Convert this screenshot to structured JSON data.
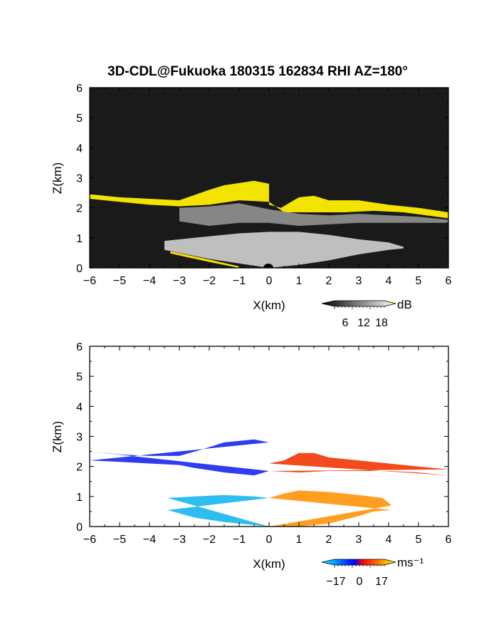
{
  "figure": {
    "title": "3D-CDL@Fukuoka 180315 162834 RHI AZ=180°"
  },
  "chart_data": [
    {
      "type": "heatmap",
      "name": "reflectivity",
      "xlabel": "X(km)",
      "ylabel": "Z(km)",
      "xlim": [
        -6,
        6
      ],
      "ylim": [
        0,
        6
      ],
      "x_ticks": [
        -6,
        -5,
        -4,
        -3,
        -2,
        -1,
        0,
        1,
        2,
        3,
        4,
        5,
        6
      ],
      "y_ticks": [
        0,
        1,
        2,
        3,
        4,
        5,
        6
      ],
      "x_tick_labels": [
        "−6",
        "−5",
        "−4",
        "−3",
        "−2",
        "−1",
        "0",
        "1",
        "2",
        "3",
        "4",
        "5",
        "6"
      ],
      "y_tick_labels": [
        "0",
        "1",
        "2",
        "3",
        "4",
        "5",
        "6"
      ],
      "background": "#1a1a1a",
      "colorbar": {
        "unit": "dB",
        "ticks": [
          "6",
          "12",
          "18"
        ],
        "colors": [
          "#000000",
          "#202020",
          "#404040",
          "#606060",
          "#808080",
          "#a0a0a0",
          "#c0c0c0",
          "#e0e0e0",
          "#ffff00"
        ]
      },
      "layers": [
        {
          "label": "cloud-top echo (strong, yellow)",
          "color": "#ffee00",
          "top": [
            [
              -6,
              2.45
            ],
            [
              -5,
              2.35
            ],
            [
              -4,
              2.3
            ],
            [
              -3,
              2.25
            ],
            [
              -2,
              2.6
            ],
            [
              -1.5,
              2.75
            ],
            [
              -0.5,
              2.9
            ],
            [
              0,
              2.8
            ],
            [
              0,
              2.1
            ],
            [
              0.4,
              2.0
            ],
            [
              1.0,
              2.35
            ],
            [
              1.5,
              2.4
            ],
            [
              2.0,
              2.25
            ],
            [
              3.0,
              2.25
            ],
            [
              4.0,
              2.1
            ],
            [
              5.0,
              2.0
            ],
            [
              6.0,
              1.85
            ]
          ],
          "bottom": [
            [
              -6,
              2.3
            ],
            [
              -5,
              2.2
            ],
            [
              -4,
              2.1
            ],
            [
              -3,
              2.05
            ],
            [
              -2,
              2.1
            ],
            [
              -1,
              2.25
            ],
            [
              0,
              2.2
            ],
            [
              0.5,
              1.85
            ],
            [
              1.5,
              1.85
            ],
            [
              2.5,
              1.85
            ],
            [
              3.5,
              1.9
            ],
            [
              4.5,
              1.85
            ],
            [
              6,
              1.65
            ]
          ]
        },
        {
          "label": "mid-level echo (gray)",
          "color": "#8c8c8c",
          "top": [
            [
              -3,
              2.0
            ],
            [
              -2,
              2.05
            ],
            [
              -1,
              2.15
            ],
            [
              0,
              1.95
            ],
            [
              1,
              1.8
            ],
            [
              2,
              1.75
            ],
            [
              3,
              1.8
            ],
            [
              4,
              1.75
            ],
            [
              5,
              1.7
            ],
            [
              6,
              1.6
            ]
          ],
          "bottom": [
            [
              -3,
              1.55
            ],
            [
              -2,
              1.4
            ],
            [
              -1,
              1.5
            ],
            [
              0,
              1.5
            ],
            [
              1,
              1.4
            ],
            [
              2,
              1.45
            ],
            [
              3,
              1.5
            ],
            [
              4,
              1.5
            ],
            [
              5,
              1.5
            ],
            [
              6,
              1.5
            ]
          ]
        },
        {
          "label": "low-level echo (light gray)",
          "color": "#c8c8c8",
          "top": [
            [
              -3.5,
              0.9
            ],
            [
              -2.5,
              1.0
            ],
            [
              -1,
              1.15
            ],
            [
              0,
              1.2
            ],
            [
              1,
              1.2
            ],
            [
              2,
              1.1
            ],
            [
              3,
              0.95
            ],
            [
              4,
              0.85
            ],
            [
              4.5,
              0.7
            ]
          ],
          "bottom": [
            [
              -3.5,
              0.6
            ],
            [
              -2,
              0.3
            ],
            [
              -1,
              0.15
            ],
            [
              0,
              0.0
            ],
            [
              1,
              0.1
            ],
            [
              2,
              0.25
            ],
            [
              3,
              0.45
            ],
            [
              4,
              0.6
            ],
            [
              4.5,
              0.65
            ]
          ]
        },
        {
          "label": "near-ground strong echo (yellow)",
          "color": "#ffee00",
          "top": [
            [
              -3.3,
              0.55
            ],
            [
              -2.0,
              0.28
            ],
            [
              -1.0,
              0.05
            ]
          ],
          "bottom": [
            [
              -3.3,
              0.48
            ],
            [
              -2.0,
              0.2
            ],
            [
              -1.0,
              0.0
            ]
          ]
        }
      ]
    },
    {
      "type": "heatmap",
      "name": "doppler-velocity",
      "xlabel": "X(km)",
      "ylabel": "Z(km)",
      "xlim": [
        -6,
        6
      ],
      "ylim": [
        0,
        6
      ],
      "x_ticks": [
        -6,
        -5,
        -4,
        -3,
        -2,
        -1,
        0,
        1,
        2,
        3,
        4,
        5,
        6
      ],
      "y_ticks": [
        0,
        1,
        2,
        3,
        4,
        5,
        6
      ],
      "x_tick_labels": [
        "−6",
        "−5",
        "−4",
        "−3",
        "−2",
        "−1",
        "0",
        "1",
        "2",
        "3",
        "4",
        "5",
        "6"
      ],
      "y_tick_labels": [
        "0",
        "1",
        "2",
        "3",
        "4",
        "5",
        "6"
      ],
      "background": "#ffffff",
      "colorbar": {
        "unit": "ms⁻¹",
        "ticks": [
          "−17",
          "0",
          "17"
        ],
        "colors": [
          "#00ffff",
          "#00c0ff",
          "#0080ff",
          "#0040ff",
          "#0000ff",
          "#ff0000",
          "#ff4000",
          "#ff8000",
          "#ffc000",
          "#ffff00"
        ]
      },
      "layers": [
        {
          "label": "upper layer, negative velocity (blue)",
          "color": "#2233ee",
          "top": [
            [
              -6,
              2.5
            ],
            [
              -5,
              2.4
            ],
            [
              -4,
              2.35
            ],
            [
              -3,
              2.35
            ],
            [
              -2.3,
              2.55
            ],
            [
              -1.5,
              2.8
            ],
            [
              -0.5,
              2.9
            ],
            [
              0,
              2.8
            ]
          ],
          "bottom": [
            [
              0,
              1.85
            ],
            [
              -0.5,
              1.7
            ],
            [
              -1.5,
              1.8
            ],
            [
              -2.5,
              1.95
            ],
            [
              -3,
              2.05
            ],
            [
              -4,
              2.1
            ],
            [
              -5,
              2.15
            ],
            [
              -6,
              2.2
            ]
          ]
        },
        {
          "label": "upper layer, positive velocity (red-orange)",
          "color": "#f04010",
          "top": [
            [
              0,
              2.1
            ],
            [
              0.5,
              2.2
            ],
            [
              1.0,
              2.45
            ],
            [
              1.5,
              2.45
            ],
            [
              2.0,
              2.3
            ],
            [
              3.0,
              2.2
            ],
            [
              4.0,
              2.1
            ],
            [
              5.0,
              2.0
            ],
            [
              6.0,
              1.9
            ]
          ],
          "bottom": [
            [
              6.0,
              1.7
            ],
            [
              5.0,
              1.8
            ],
            [
              4.0,
              1.85
            ],
            [
              3.0,
              1.85
            ],
            [
              2.0,
              1.85
            ],
            [
              1.0,
              1.8
            ],
            [
              0,
              1.85
            ]
          ]
        },
        {
          "label": "lower layer, negative velocity (cyan)",
          "color": "#22bbee",
          "top": [
            [
              -3.4,
              0.95
            ],
            [
              -2.5,
              1.0
            ],
            [
              -1.5,
              1.05
            ],
            [
              -0.5,
              1.0
            ],
            [
              0,
              0.95
            ]
          ],
          "bottom": [
            [
              0,
              0.0
            ],
            [
              -0.5,
              0.05
            ],
            [
              -1.5,
              0.15
            ],
            [
              -2.5,
              0.3
            ],
            [
              -3.4,
              0.55
            ]
          ]
        },
        {
          "label": "lower layer, positive velocity (orange)",
          "color": "#ff9915",
          "top": [
            [
              0,
              0.95
            ],
            [
              0.5,
              1.1
            ],
            [
              1.0,
              1.2
            ],
            [
              2.0,
              1.15
            ],
            [
              3.0,
              1.05
            ],
            [
              3.8,
              0.95
            ],
            [
              4.1,
              0.7
            ]
          ],
          "bottom": [
            [
              4.1,
              0.55
            ],
            [
              3.5,
              0.5
            ],
            [
              3.0,
              0.35
            ],
            [
              2.0,
              0.1
            ],
            [
              1.0,
              0.0
            ],
            [
              0,
              0.0
            ]
          ]
        }
      ]
    }
  ]
}
